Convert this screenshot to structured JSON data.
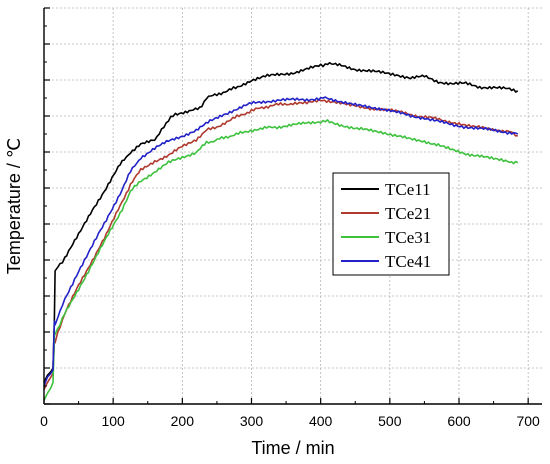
{
  "chart_data": {
    "type": "line",
    "title": "",
    "xlabel": "Time / min",
    "ylabel": "Temperature / ℃",
    "xlim": [
      0,
      720
    ],
    "ylim": [
      0,
      11
    ],
    "xticks": [
      0,
      100,
      200,
      300,
      400,
      500,
      600,
      700
    ],
    "yticks": [
      0,
      1,
      2,
      3,
      4,
      5,
      6,
      7,
      8,
      9,
      10,
      11
    ],
    "y_tick_labels_shown": false,
    "grid": true,
    "legend_position": "center-right",
    "series": [
      {
        "name": "TCe11",
        "color": "#000000",
        "points": [
          [
            0,
            0.6
          ],
          [
            5,
            0.8
          ],
          [
            10,
            0.9
          ],
          [
            13,
            1.0
          ],
          [
            15,
            2.4
          ],
          [
            16,
            3.7
          ],
          [
            20,
            3.8
          ],
          [
            30,
            4.05
          ],
          [
            50,
            4.7
          ],
          [
            70,
            5.4
          ],
          [
            90,
            6.0
          ],
          [
            110,
            6.65
          ],
          [
            125,
            7.0
          ],
          [
            140,
            7.2
          ],
          [
            160,
            7.35
          ],
          [
            170,
            7.6
          ],
          [
            180,
            7.9
          ],
          [
            190,
            8.05
          ],
          [
            210,
            8.15
          ],
          [
            225,
            8.2
          ],
          [
            235,
            8.5
          ],
          [
            250,
            8.6
          ],
          [
            280,
            8.8
          ],
          [
            300,
            9.0
          ],
          [
            320,
            9.1
          ],
          [
            340,
            9.15
          ],
          [
            360,
            9.2
          ],
          [
            380,
            9.3
          ],
          [
            400,
            9.4
          ],
          [
            410,
            9.45
          ],
          [
            430,
            9.4
          ],
          [
            450,
            9.3
          ],
          [
            470,
            9.25
          ],
          [
            490,
            9.2
          ],
          [
            510,
            9.15
          ],
          [
            530,
            9.05
          ],
          [
            550,
            9.1
          ],
          [
            570,
            8.95
          ],
          [
            590,
            8.9
          ],
          [
            610,
            8.9
          ],
          [
            630,
            8.8
          ],
          [
            650,
            8.8
          ],
          [
            670,
            8.75
          ],
          [
            685,
            8.7
          ]
        ]
      },
      {
        "name": "TCe21",
        "color": "#b03a2e",
        "points": [
          [
            0,
            0.4
          ],
          [
            5,
            0.6
          ],
          [
            10,
            0.75
          ],
          [
            13,
            0.85
          ],
          [
            15,
            1.8
          ],
          [
            16,
            1.7
          ],
          [
            20,
            2.0
          ],
          [
            30,
            2.5
          ],
          [
            50,
            3.3
          ],
          [
            70,
            4.0
          ],
          [
            90,
            4.7
          ],
          [
            110,
            5.5
          ],
          [
            125,
            6.1
          ],
          [
            140,
            6.5
          ],
          [
            160,
            6.75
          ],
          [
            180,
            6.9
          ],
          [
            200,
            7.15
          ],
          [
            220,
            7.35
          ],
          [
            235,
            7.6
          ],
          [
            250,
            7.7
          ],
          [
            270,
            7.9
          ],
          [
            300,
            8.15
          ],
          [
            330,
            8.3
          ],
          [
            360,
            8.35
          ],
          [
            380,
            8.35
          ],
          [
            400,
            8.45
          ],
          [
            420,
            8.4
          ],
          [
            440,
            8.3
          ],
          [
            460,
            8.25
          ],
          [
            480,
            8.2
          ],
          [
            500,
            8.15
          ],
          [
            520,
            8.1
          ],
          [
            540,
            8.0
          ],
          [
            560,
            7.95
          ],
          [
            580,
            7.85
          ],
          [
            600,
            7.8
          ],
          [
            620,
            7.7
          ],
          [
            640,
            7.65
          ],
          [
            660,
            7.6
          ],
          [
            675,
            7.55
          ],
          [
            685,
            7.45
          ]
        ]
      },
      {
        "name": "TCe31",
        "color": "#3ec23e",
        "points": [
          [
            0,
            0.1
          ],
          [
            5,
            0.3
          ],
          [
            10,
            0.45
          ],
          [
            13,
            0.6
          ],
          [
            15,
            1.9
          ],
          [
            20,
            2.1
          ],
          [
            30,
            2.5
          ],
          [
            50,
            3.2
          ],
          [
            70,
            3.9
          ],
          [
            90,
            4.6
          ],
          [
            110,
            5.3
          ],
          [
            125,
            5.9
          ],
          [
            140,
            6.2
          ],
          [
            160,
            6.45
          ],
          [
            180,
            6.7
          ],
          [
            200,
            6.85
          ],
          [
            220,
            7.0
          ],
          [
            235,
            7.25
          ],
          [
            260,
            7.4
          ],
          [
            290,
            7.55
          ],
          [
            310,
            7.65
          ],
          [
            340,
            7.7
          ],
          [
            360,
            7.75
          ],
          [
            380,
            7.8
          ],
          [
            400,
            7.85
          ],
          [
            410,
            7.85
          ],
          [
            430,
            7.75
          ],
          [
            450,
            7.65
          ],
          [
            470,
            7.6
          ],
          [
            490,
            7.55
          ],
          [
            510,
            7.45
          ],
          [
            530,
            7.35
          ],
          [
            550,
            7.3
          ],
          [
            570,
            7.2
          ],
          [
            590,
            7.05
          ],
          [
            610,
            6.95
          ],
          [
            630,
            6.9
          ],
          [
            650,
            6.8
          ],
          [
            670,
            6.75
          ],
          [
            685,
            6.7
          ]
        ]
      },
      {
        "name": "TCe41",
        "color": "#2222c8",
        "points": [
          [
            0,
            0.5
          ],
          [
            5,
            0.75
          ],
          [
            10,
            0.85
          ],
          [
            13,
            0.95
          ],
          [
            15,
            2.3
          ],
          [
            16,
            2.2
          ],
          [
            20,
            2.4
          ],
          [
            30,
            2.9
          ],
          [
            50,
            3.7
          ],
          [
            70,
            4.4
          ],
          [
            90,
            5.1
          ],
          [
            110,
            5.85
          ],
          [
            125,
            6.45
          ],
          [
            140,
            6.85
          ],
          [
            160,
            7.1
          ],
          [
            180,
            7.3
          ],
          [
            200,
            7.45
          ],
          [
            220,
            7.6
          ],
          [
            240,
            7.85
          ],
          [
            260,
            8.05
          ],
          [
            280,
            8.2
          ],
          [
            300,
            8.35
          ],
          [
            320,
            8.4
          ],
          [
            340,
            8.45
          ],
          [
            360,
            8.45
          ],
          [
            380,
            8.45
          ],
          [
            400,
            8.5
          ],
          [
            410,
            8.5
          ],
          [
            430,
            8.4
          ],
          [
            450,
            8.3
          ],
          [
            470,
            8.25
          ],
          [
            490,
            8.2
          ],
          [
            510,
            8.1
          ],
          [
            530,
            8.0
          ],
          [
            550,
            7.95
          ],
          [
            570,
            7.85
          ],
          [
            590,
            7.75
          ],
          [
            610,
            7.7
          ],
          [
            630,
            7.65
          ],
          [
            650,
            7.6
          ],
          [
            670,
            7.55
          ],
          [
            685,
            7.5
          ]
        ]
      }
    ]
  }
}
